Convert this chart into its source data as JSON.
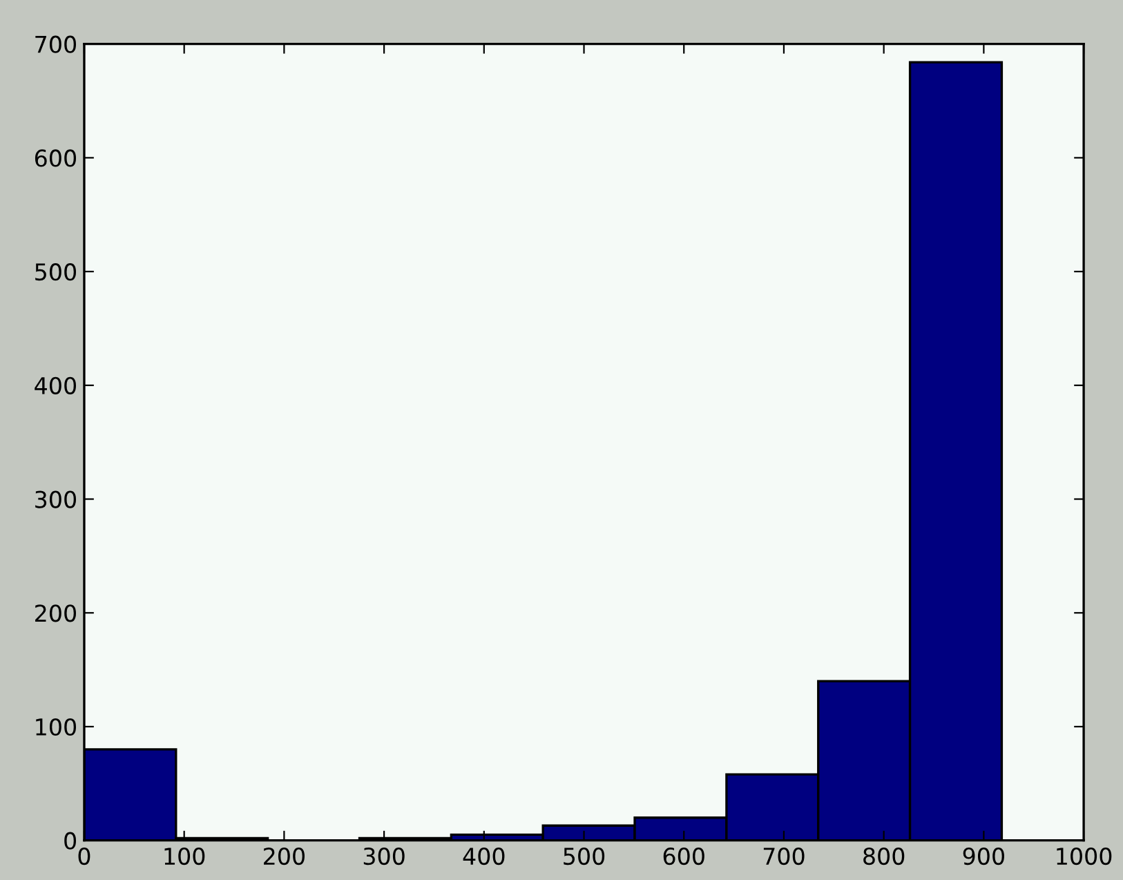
{
  "chart_data": {
    "type": "histogram",
    "bins": [
      0,
      91.8,
      183.6,
      275.4,
      367.2,
      459,
      550.8,
      642.6,
      734.4,
      826.2,
      918
    ],
    "values": [
      80,
      2,
      0,
      2,
      5,
      13,
      20,
      58,
      140,
      684
    ],
    "color": "#000080",
    "xlim": [
      0,
      1000
    ],
    "xticks": [
      0,
      100,
      200,
      300,
      400,
      500,
      600,
      700,
      800,
      900,
      1000
    ],
    "ylim": [
      0,
      700
    ],
    "yticks": [
      0,
      100,
      200,
      300,
      400,
      500,
      600,
      700
    ],
    "grid": false
  }
}
